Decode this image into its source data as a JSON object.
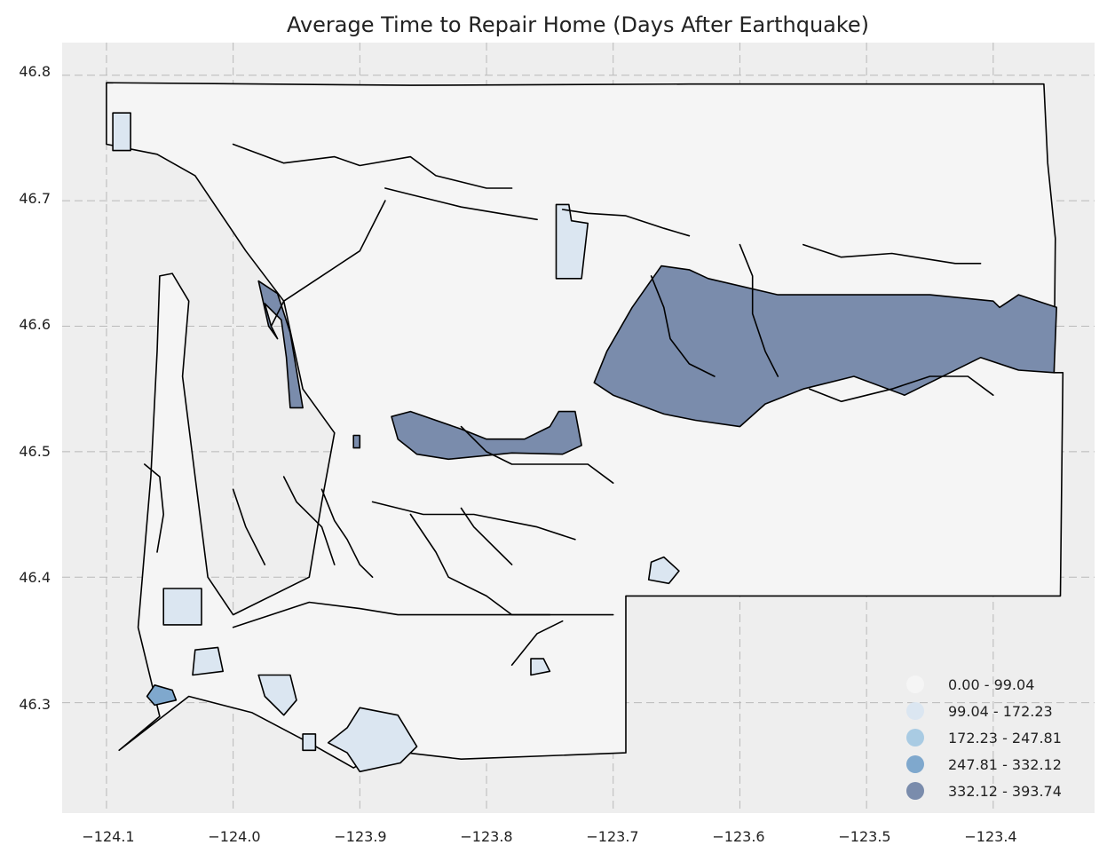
{
  "title": "Average Time to Repair Home (Days After Earthquake)",
  "colors": {
    "background": "#ffffff",
    "plot_area": "#eeeeee",
    "grid": "#b9b9b9",
    "outline": "#000000"
  },
  "axes": {
    "x_ticks": [
      "−124.1",
      "−124.0",
      "−123.9",
      "−123.8",
      "−123.7",
      "−123.6",
      "−123.5",
      "−123.4"
    ],
    "y_ticks": [
      "46.8",
      "46.7",
      "46.6",
      "46.5",
      "46.4",
      "46.3"
    ]
  },
  "legend": {
    "placement": "bottom-right",
    "items": [
      {
        "label": "0.00 - 99.04",
        "color": "#f5f5f5"
      },
      {
        "label": "99.04 - 172.23",
        "color": "#dbe6f1"
      },
      {
        "label": "172.23 - 247.81",
        "color": "#a9cbe3"
      },
      {
        "label": "247.81 - 332.12",
        "color": "#7fa8cd"
      },
      {
        "label": "332.12 - 393.74",
        "color": "#7a8cac"
      }
    ]
  },
  "chart_data": {
    "type": "choropleth",
    "title": "Average Time to Repair Home (Days After Earthquake)",
    "xlabel": "",
    "ylabel": "",
    "xlim": [
      -124.135,
      -123.32
    ],
    "ylim": [
      46.212,
      46.826
    ],
    "grid": true,
    "x_ticks": [
      -124.1,
      -124.0,
      -123.9,
      -123.8,
      -123.7,
      -123.6,
      -123.5,
      -123.4
    ],
    "y_ticks": [
      46.8,
      46.7,
      46.6,
      46.5,
      46.4,
      46.3
    ],
    "classes": [
      {
        "label": "0.00 - 99.04",
        "min": 0.0,
        "max": 99.04
      },
      {
        "label": "99.04 - 172.23",
        "min": 99.04,
        "max": 172.23
      },
      {
        "label": "172.23 - 247.81",
        "min": 172.23,
        "max": 247.81
      },
      {
        "label": "247.81 - 332.12",
        "min": 247.81,
        "max": 332.12
      },
      {
        "label": "332.12 - 393.74",
        "min": 332.12,
        "max": 393.74
      }
    ],
    "regions": [
      {
        "class": 0,
        "coords": [
          [
            -124.1,
            46.794
          ],
          [
            -123.86,
            46.792
          ],
          [
            -123.64,
            46.793
          ],
          [
            -123.36,
            46.793
          ],
          [
            -123.357,
            46.73
          ],
          [
            -123.351,
            46.67
          ],
          [
            -123.352,
            46.563
          ],
          [
            -123.345,
            46.563
          ],
          [
            -123.347,
            46.385
          ],
          [
            -123.69,
            46.385
          ],
          [
            -123.69,
            46.26
          ],
          [
            -123.82,
            46.255
          ],
          [
            -123.88,
            46.262
          ],
          [
            -123.905,
            46.248
          ],
          [
            -123.94,
            46.268
          ],
          [
            -123.985,
            46.292
          ],
          [
            -124.035,
            46.305
          ],
          [
            -124.09,
            46.262
          ],
          [
            -124.058,
            46.289
          ],
          [
            -124.075,
            46.36
          ],
          [
            -124.065,
            46.48
          ],
          [
            -124.06,
            46.58
          ],
          [
            -124.058,
            46.64
          ],
          [
            -124.048,
            46.642
          ],
          [
            -124.035,
            46.62
          ],
          [
            -124.04,
            46.56
          ],
          [
            -124.03,
            46.48
          ],
          [
            -124.02,
            46.4
          ],
          [
            -124.0,
            46.37
          ],
          [
            -123.94,
            46.4
          ],
          [
            -123.93,
            46.46
          ],
          [
            -123.92,
            46.515
          ],
          [
            -123.945,
            46.55
          ],
          [
            -123.96,
            46.62
          ],
          [
            -123.99,
            46.66
          ],
          [
            -124.03,
            46.72
          ],
          [
            -124.06,
            46.737
          ],
          [
            -124.1,
            46.745
          ]
        ]
      },
      {
        "class": 1,
        "coords": [
          [
            -124.095,
            46.77
          ],
          [
            -124.081,
            46.77
          ],
          [
            -124.081,
            46.74
          ],
          [
            -124.095,
            46.74
          ]
        ]
      },
      {
        "class": 1,
        "coords": [
          [
            -124.055,
            46.391
          ],
          [
            -124.025,
            46.391
          ],
          [
            -124.025,
            46.362
          ],
          [
            -124.055,
            46.362
          ]
        ]
      },
      {
        "class": 1,
        "coords": [
          [
            -124.03,
            46.342
          ],
          [
            -124.012,
            46.344
          ],
          [
            -124.008,
            46.325
          ],
          [
            -124.032,
            46.322
          ]
        ]
      },
      {
        "class": 1,
        "coords": [
          [
            -123.98,
            46.322
          ],
          [
            -123.955,
            46.322
          ],
          [
            -123.95,
            46.302
          ],
          [
            -123.96,
            46.29
          ],
          [
            -123.975,
            46.305
          ]
        ]
      },
      {
        "class": 1,
        "coords": [
          [
            -123.9,
            46.296
          ],
          [
            -123.87,
            46.29
          ],
          [
            -123.855,
            46.265
          ],
          [
            -123.868,
            46.252
          ],
          [
            -123.9,
            46.245
          ],
          [
            -123.91,
            46.26
          ],
          [
            -123.925,
            46.268
          ],
          [
            -123.91,
            46.28
          ]
        ]
      },
      {
        "class": 1,
        "coords": [
          [
            -123.745,
            46.697
          ],
          [
            -123.735,
            46.697
          ],
          [
            -123.733,
            46.684
          ],
          [
            -123.72,
            46.682
          ],
          [
            -123.725,
            46.638
          ],
          [
            -123.745,
            46.638
          ]
        ]
      },
      {
        "class": 1,
        "coords": [
          [
            -123.765,
            46.335
          ],
          [
            -123.755,
            46.335
          ],
          [
            -123.75,
            46.325
          ],
          [
            -123.765,
            46.322
          ]
        ]
      },
      {
        "class": 1,
        "coords": [
          [
            -123.67,
            46.412
          ],
          [
            -123.66,
            46.416
          ],
          [
            -123.648,
            46.405
          ],
          [
            -123.656,
            46.395
          ],
          [
            -123.672,
            46.398
          ]
        ]
      },
      {
        "class": 1,
        "coords": [
          [
            -123.945,
            46.275
          ],
          [
            -123.935,
            46.275
          ],
          [
            -123.935,
            46.262
          ],
          [
            -123.945,
            46.262
          ]
        ]
      },
      {
        "class": 2,
        "coords": [
          [
            -123.65,
            46.626
          ],
          [
            -123.636,
            46.628
          ],
          [
            -123.627,
            46.617
          ],
          [
            -123.637,
            46.608
          ],
          [
            -123.652,
            46.614
          ]
        ]
      },
      {
        "class": 3,
        "coords": [
          [
            -124.062,
            46.314
          ],
          [
            -124.048,
            46.31
          ],
          [
            -124.045,
            46.302
          ],
          [
            -124.062,
            46.298
          ],
          [
            -124.068,
            46.305
          ]
        ]
      },
      {
        "class": 4,
        "coords": [
          [
            -123.98,
            46.636
          ],
          [
            -123.965,
            46.626
          ],
          [
            -123.955,
            46.595
          ],
          [
            -123.945,
            46.535
          ],
          [
            -123.955,
            46.535
          ],
          [
            -123.958,
            46.575
          ],
          [
            -123.962,
            46.605
          ],
          [
            -123.975,
            46.618
          ],
          [
            -123.97,
            46.6
          ],
          [
            -123.965,
            46.59
          ],
          [
            -123.972,
            46.6
          ]
        ]
      },
      {
        "class": 4,
        "coords": [
          [
            -123.662,
            46.648
          ],
          [
            -123.64,
            46.645
          ],
          [
            -123.625,
            46.638
          ],
          [
            -123.57,
            46.625
          ],
          [
            -123.52,
            46.625
          ],
          [
            -123.45,
            46.625
          ],
          [
            -123.4,
            46.62
          ],
          [
            -123.395,
            46.615
          ],
          [
            -123.38,
            46.625
          ],
          [
            -123.35,
            46.615
          ],
          [
            -123.352,
            46.563
          ],
          [
            -123.38,
            46.565
          ],
          [
            -123.41,
            46.575
          ],
          [
            -123.47,
            46.545
          ],
          [
            -123.51,
            46.56
          ],
          [
            -123.55,
            46.55
          ],
          [
            -123.58,
            46.538
          ],
          [
            -123.6,
            46.52
          ],
          [
            -123.635,
            46.525
          ],
          [
            -123.66,
            46.53
          ],
          [
            -123.7,
            46.545
          ],
          [
            -123.715,
            46.555
          ],
          [
            -123.705,
            46.58
          ],
          [
            -123.685,
            46.615
          ]
        ]
      },
      {
        "class": 4,
        "coords": [
          [
            -123.875,
            46.528
          ],
          [
            -123.86,
            46.532
          ],
          [
            -123.82,
            46.518
          ],
          [
            -123.8,
            46.51
          ],
          [
            -123.77,
            46.51
          ],
          [
            -123.75,
            46.52
          ],
          [
            -123.743,
            46.532
          ],
          [
            -123.73,
            46.532
          ],
          [
            -123.725,
            46.505
          ],
          [
            -123.74,
            46.498
          ],
          [
            -123.78,
            46.499
          ],
          [
            -123.83,
            46.494
          ],
          [
            -123.855,
            46.498
          ],
          [
            -123.87,
            46.51
          ]
        ]
      },
      {
        "class": 4,
        "coords": [
          [
            -123.905,
            46.513
          ],
          [
            -123.9,
            46.513
          ],
          [
            -123.9,
            46.503
          ],
          [
            -123.905,
            46.503
          ]
        ]
      }
    ],
    "lines": [
      [
        [
          -124.0,
          46.745
        ],
        [
          -123.96,
          46.73
        ],
        [
          -123.92,
          46.735
        ],
        [
          -123.9,
          46.728
        ],
        [
          -123.86,
          46.735
        ],
        [
          -123.84,
          46.72
        ],
        [
          -123.8,
          46.71
        ],
        [
          -123.78,
          46.71
        ]
      ],
      [
        [
          -123.88,
          46.71
        ],
        [
          -123.86,
          46.705
        ],
        [
          -123.84,
          46.7
        ],
        [
          -123.82,
          46.695
        ],
        [
          -123.79,
          46.69
        ],
        [
          -123.76,
          46.685
        ]
      ],
      [
        [
          -123.74,
          46.693
        ],
        [
          -123.72,
          46.69
        ],
        [
          -123.69,
          46.688
        ],
        [
          -123.66,
          46.678
        ],
        [
          -123.64,
          46.672
        ]
      ],
      [
        [
          -123.82,
          46.52
        ],
        [
          -123.8,
          46.5
        ],
        [
          -123.78,
          46.49
        ],
        [
          -123.72,
          46.49
        ],
        [
          -123.7,
          46.475
        ]
      ],
      [
        [
          -123.89,
          46.46
        ],
        [
          -123.85,
          46.45
        ],
        [
          -123.81,
          46.45
        ],
        [
          -123.76,
          46.44
        ],
        [
          -123.73,
          46.43
        ]
      ],
      [
        [
          -123.86,
          46.45
        ],
        [
          -123.84,
          46.42
        ],
        [
          -123.83,
          46.4
        ],
        [
          -123.8,
          46.385
        ],
        [
          -123.78,
          46.37
        ],
        [
          -123.74,
          46.37
        ],
        [
          -123.7,
          46.37
        ]
      ],
      [
        [
          -124.0,
          46.36
        ],
        [
          -123.97,
          46.37
        ],
        [
          -123.94,
          46.38
        ],
        [
          -123.9,
          46.375
        ],
        [
          -123.87,
          46.37
        ],
        [
          -123.83,
          46.37
        ],
        [
          -123.79,
          46.37
        ],
        [
          -123.75,
          46.37
        ]
      ],
      [
        [
          -123.6,
          46.665
        ],
        [
          -123.59,
          46.64
        ],
        [
          -123.59,
          46.61
        ],
        [
          -123.58,
          46.58
        ],
        [
          -123.57,
          46.56
        ]
      ],
      [
        [
          -123.545,
          46.55
        ],
        [
          -123.52,
          46.54
        ],
        [
          -123.48,
          46.55
        ],
        [
          -123.45,
          46.56
        ],
        [
          -123.42,
          46.56
        ],
        [
          -123.4,
          46.545
        ]
      ],
      [
        [
          -123.55,
          46.665
        ],
        [
          -123.52,
          46.655
        ],
        [
          -123.48,
          46.658
        ],
        [
          -123.43,
          46.65
        ],
        [
          -123.41,
          46.65
        ]
      ],
      [
        [
          -123.93,
          46.47
        ],
        [
          -123.92,
          46.445
        ],
        [
          -123.91,
          46.43
        ],
        [
          -123.9,
          46.41
        ],
        [
          -123.89,
          46.4
        ]
      ],
      [
        [
          -123.96,
          46.48
        ],
        [
          -123.95,
          46.46
        ],
        [
          -123.93,
          46.44
        ],
        [
          -123.92,
          46.41
        ]
      ],
      [
        [
          -124.0,
          46.47
        ],
        [
          -123.99,
          46.44
        ],
        [
          -123.98,
          46.42
        ],
        [
          -123.975,
          46.41
        ]
      ],
      [
        [
          -123.82,
          46.455
        ],
        [
          -123.81,
          46.44
        ],
        [
          -123.79,
          46.42
        ],
        [
          -123.78,
          46.41
        ]
      ],
      [
        [
          -123.74,
          46.365
        ],
        [
          -123.76,
          46.355
        ],
        [
          -123.78,
          46.33
        ]
      ],
      [
        [
          -124.07,
          46.49
        ],
        [
          -124.058,
          46.48
        ],
        [
          -124.055,
          46.45
        ],
        [
          -124.06,
          46.42
        ]
      ],
      [
        [
          -123.97,
          46.6
        ],
        [
          -123.96,
          46.62
        ],
        [
          -123.93,
          46.64
        ],
        [
          -123.9,
          46.66
        ],
        [
          -123.88,
          46.7
        ]
      ],
      [
        [
          -123.67,
          46.64
        ],
        [
          -123.66,
          46.615
        ],
        [
          -123.655,
          46.59
        ],
        [
          -123.64,
          46.57
        ],
        [
          -123.62,
          46.56
        ]
      ]
    ]
  }
}
